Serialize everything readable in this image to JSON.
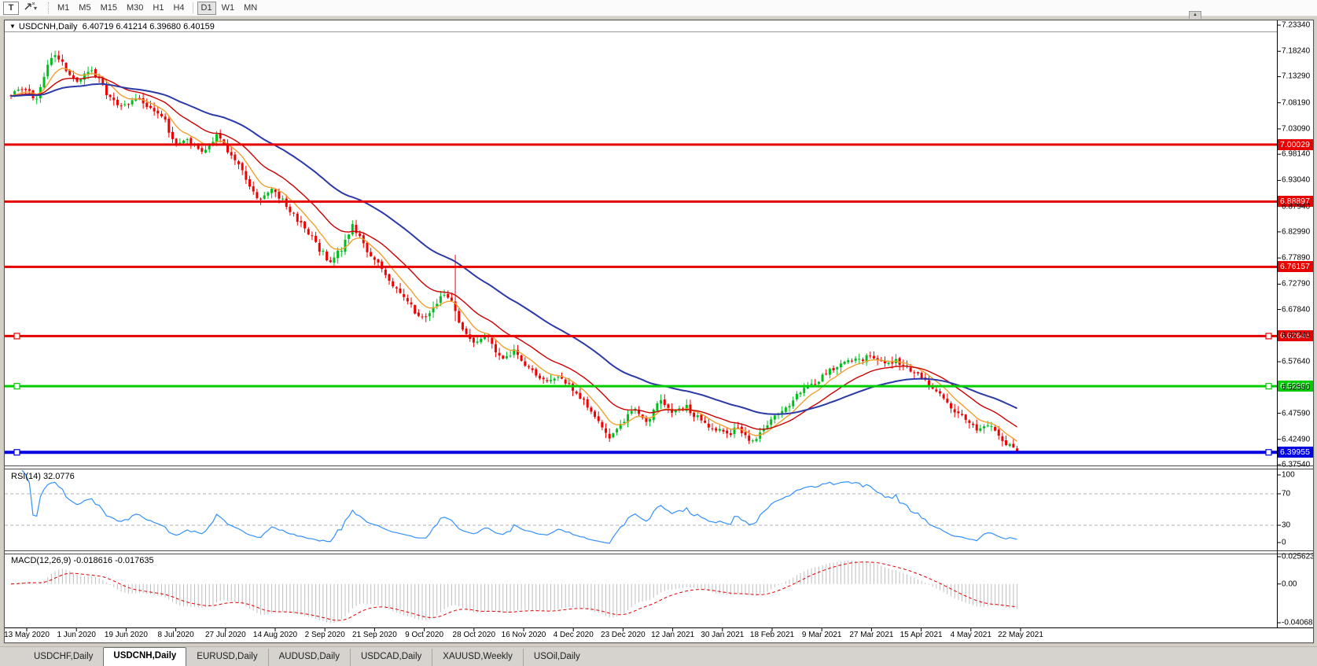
{
  "icons": {
    "dropdown_caret": "▾",
    "title_collapse": "▼",
    "scroll_up": "▲"
  },
  "toolbar": {
    "text_tool_label": "T",
    "cursor_tool_icon": "crosshair-arrow",
    "timeframes": [
      "M1",
      "M5",
      "M15",
      "M30",
      "H1",
      "H4",
      "D1",
      "W1",
      "MN"
    ],
    "active_timeframe": "D1"
  },
  "window": {
    "symbol_label": "USDCNH,Daily",
    "ohlc_quote": "6.40719 6.41214 6.39680 6.40159"
  },
  "tabs": {
    "active_index": 1,
    "items": [
      "USDCHF,Daily",
      "USDCNH,Daily",
      "EURUSD,Daily",
      "AUDUSD,Daily",
      "USDCAD,Daily",
      "XAUUSD,Weekly",
      "USOil,Daily"
    ]
  },
  "chart_data": {
    "type": "candlestick",
    "symbol": "USDCNH",
    "timeframe": "Daily",
    "bars": 275,
    "last_bar": {
      "open": 6.40719,
      "high": 6.41214,
      "low": 6.3968,
      "close": 6.40159
    },
    "candle_colors": {
      "up": "#00bd1f",
      "down": "#f00000"
    },
    "price_axis": {
      "ticks": [
        7.2334,
        7.1824,
        7.1329,
        7.0819,
        7.0309,
        6.9814,
        6.9304,
        6.8794,
        6.8299,
        6.7789,
        6.7279,
        6.6784,
        6.6274,
        6.5764,
        6.5259,
        6.4759,
        6.4249,
        6.3754
      ]
    },
    "date_axis": [
      "13 May 2020",
      "1 Jun 2020",
      "19 Jun 2020",
      "8 Jul 2020",
      "27 Jul 2020",
      "14 Aug 2020",
      "2 Sep 2020",
      "21 Sep 2020",
      "9 Oct 2020",
      "28 Oct 2020",
      "16 Nov 2020",
      "4 Dec 2020",
      "23 Dec 2020",
      "12 Jan 2021",
      "30 Jan 2021",
      "18 Feb 2021",
      "9 Mar 2021",
      "27 Mar 2021",
      "15 Apr 2021",
      "4 May 2021",
      "22 May 2021"
    ],
    "horizontal_lines": [
      {
        "price": 7.00029,
        "label": "7.00029",
        "color": "#e60000",
        "width": 3,
        "selected": false
      },
      {
        "price": 6.88897,
        "label": "6.88897",
        "color": "#e60000",
        "width": 3,
        "selected": false
      },
      {
        "price": 6.76157,
        "label": "6.76157",
        "color": "#e60000",
        "width": 3,
        "selected": false
      },
      {
        "price": 6.62646,
        "label": "6.62646",
        "color": "#e60000",
        "width": 3,
        "selected": true
      },
      {
        "price": 6.52865,
        "label": "6.52865",
        "color": "#00cc00",
        "width": 3,
        "selected": true
      },
      {
        "price": 6.39955,
        "label": "6.39955",
        "color": "#0000e0",
        "width": 4,
        "selected": true
      }
    ],
    "moving_averages": [
      {
        "period": 8,
        "color": "#f0a030",
        "width": 1.4
      },
      {
        "period": 20,
        "color": "#cc0000",
        "width": 1.4
      },
      {
        "period": 50,
        "color": "#2b3aa8",
        "width": 2
      }
    ],
    "price_path": [
      [
        0.0,
        7.095
      ],
      [
        0.012,
        7.115
      ],
      [
        0.025,
        7.085
      ],
      [
        0.042,
        7.185
      ],
      [
        0.052,
        7.155
      ],
      [
        0.065,
        7.125
      ],
      [
        0.08,
        7.15
      ],
      [
        0.095,
        7.1
      ],
      [
        0.11,
        7.07
      ],
      [
        0.125,
        7.09
      ],
      [
        0.14,
        7.065
      ],
      [
        0.152,
        7.06
      ],
      [
        0.16,
        7.005
      ],
      [
        0.175,
        7.012
      ],
      [
        0.19,
        6.988
      ],
      [
        0.205,
        7.02
      ],
      [
        0.22,
        6.975
      ],
      [
        0.235,
        6.93
      ],
      [
        0.248,
        6.89
      ],
      [
        0.26,
        6.912
      ],
      [
        0.278,
        6.872
      ],
      [
        0.293,
        6.835
      ],
      [
        0.305,
        6.8
      ],
      [
        0.317,
        6.772
      ],
      [
        0.33,
        6.8
      ],
      [
        0.34,
        6.845
      ],
      [
        0.352,
        6.8
      ],
      [
        0.365,
        6.765
      ],
      [
        0.38,
        6.725
      ],
      [
        0.395,
        6.69
      ],
      [
        0.41,
        6.658
      ],
      [
        0.425,
        6.7
      ],
      [
        0.435,
        6.708
      ],
      [
        0.445,
        6.65
      ],
      [
        0.46,
        6.615
      ],
      [
        0.472,
        6.63
      ],
      [
        0.487,
        6.578
      ],
      [
        0.5,
        6.6
      ],
      [
        0.515,
        6.565
      ],
      [
        0.53,
        6.537
      ],
      [
        0.545,
        6.55
      ],
      [
        0.557,
        6.525
      ],
      [
        0.57,
        6.5
      ],
      [
        0.583,
        6.458
      ],
      [
        0.594,
        6.428
      ],
      [
        0.607,
        6.458
      ],
      [
        0.62,
        6.49
      ],
      [
        0.632,
        6.458
      ],
      [
        0.645,
        6.5
      ],
      [
        0.658,
        6.478
      ],
      [
        0.67,
        6.49
      ],
      [
        0.682,
        6.468
      ],
      [
        0.695,
        6.452
      ],
      [
        0.71,
        6.432
      ],
      [
        0.722,
        6.447
      ],
      [
        0.737,
        6.417
      ],
      [
        0.75,
        6.45
      ],
      [
        0.765,
        6.478
      ],
      [
        0.78,
        6.508
      ],
      [
        0.795,
        6.53
      ],
      [
        0.81,
        6.555
      ],
      [
        0.825,
        6.572
      ],
      [
        0.84,
        6.582
      ],
      [
        0.856,
        6.585
      ],
      [
        0.868,
        6.572
      ],
      [
        0.88,
        6.578
      ],
      [
        0.892,
        6.56
      ],
      [
        0.904,
        6.545
      ],
      [
        0.916,
        6.525
      ],
      [
        0.928,
        6.5
      ],
      [
        0.94,
        6.478
      ],
      [
        0.95,
        6.46
      ],
      [
        0.96,
        6.443
      ],
      [
        0.97,
        6.455
      ],
      [
        0.98,
        6.432
      ],
      [
        0.99,
        6.418
      ],
      [
        1.0,
        6.4016
      ]
    ],
    "long_wick": {
      "t": 0.44,
      "high": 6.785
    },
    "rsi": {
      "label": "RSI(14) 32.0776",
      "period": 14,
      "value": 32.0776,
      "levels": [
        100,
        70,
        30,
        0
      ],
      "dashed_levels": [
        70,
        30
      ],
      "color": "#3390ff"
    },
    "macd": {
      "label": "MACD(12,26,9) -0.018616 -0.017635",
      "fast": 12,
      "slow": 26,
      "signal": 9,
      "values": [
        -0.018616,
        -0.017635
      ],
      "axis_labels": [
        "0.025623",
        "0.00",
        "-0.040687"
      ],
      "bar_color": "#bfbfbf",
      "signal_color": "#e00000"
    }
  }
}
